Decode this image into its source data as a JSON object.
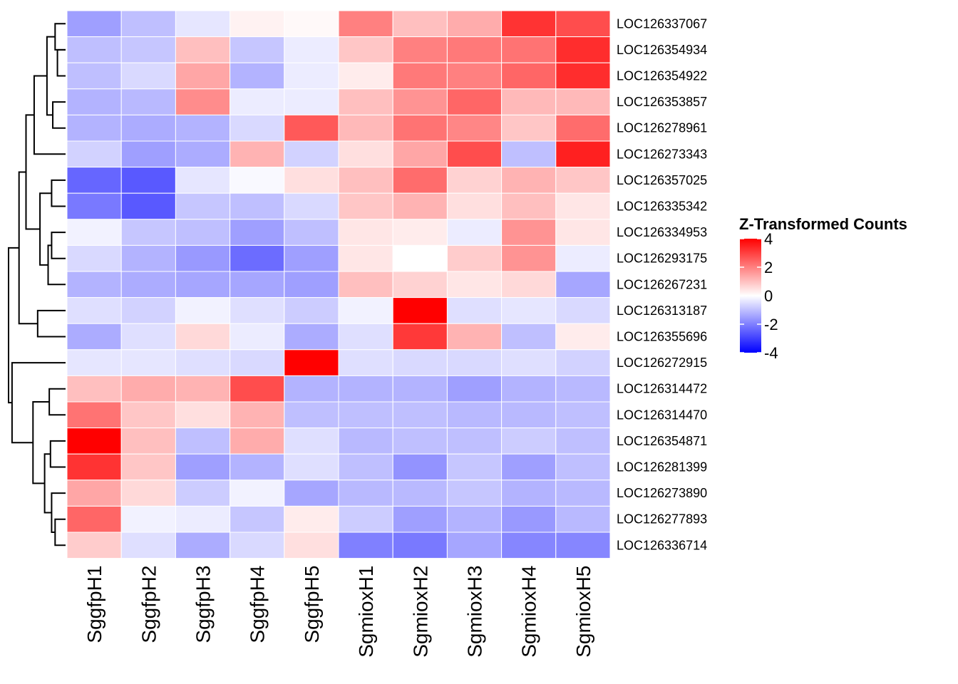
{
  "chart_data": {
    "type": "heatmap",
    "title": "",
    "xlabel": "",
    "ylabel": "",
    "legend": {
      "title": "Z-Transformed Counts",
      "range": [
        -4,
        4
      ],
      "ticks": [
        4,
        2,
        0,
        -2,
        -4
      ],
      "tick_labels": [
        "4",
        "2",
        "0",
        "-2",
        "-4"
      ],
      "placement": "right"
    },
    "colors": {
      "low": "#0000ff",
      "mid": "#ffffff",
      "high": "#ff0000",
      "grid": "#ffffff"
    },
    "columns": [
      "SggfpH1",
      "SggfpH2",
      "SggfpH3",
      "SggfpH4",
      "SggfpH5",
      "SgmioxH1",
      "SgmioxH2",
      "SgmioxH3",
      "SgmioxH4",
      "SgmioxH5"
    ],
    "rows": [
      "LOC126337067",
      "LOC126354934",
      "LOC126354922",
      "LOC126353857",
      "LOC126278961",
      "LOC126273343",
      "LOC126357025",
      "LOC126335342",
      "LOC126334953",
      "LOC126293175",
      "LOC126267231",
      "LOC126313187",
      "LOC126355696",
      "LOC126272915",
      "LOC126314472",
      "LOC126314470",
      "LOC126354871",
      "LOC126281399",
      "LOC126273890",
      "LOC126277893",
      "LOC126336714"
    ],
    "values": [
      [
        -1.5,
        -1.0,
        -0.4,
        0.2,
        0.1,
        2.0,
        1.0,
        1.3,
        3.2,
        2.8
      ],
      [
        -1.0,
        -0.9,
        1.0,
        -0.9,
        -0.3,
        0.9,
        2.0,
        2.1,
        2.2,
        3.3
      ],
      [
        -1.0,
        -0.6,
        1.4,
        -1.2,
        -0.3,
        0.3,
        2.1,
        2.0,
        2.4,
        3.3
      ],
      [
        -1.2,
        -1.1,
        1.8,
        -0.3,
        -0.3,
        1.0,
        1.7,
        2.4,
        1.1,
        1.1
      ],
      [
        -1.2,
        -1.3,
        -1.2,
        -0.6,
        2.6,
        1.1,
        2.2,
        1.9,
        0.9,
        2.3
      ],
      [
        -0.7,
        -1.5,
        -1.3,
        1.2,
        -0.7,
        0.5,
        1.4,
        2.8,
        -1.0,
        3.5
      ],
      [
        -2.4,
        -2.6,
        -0.4,
        -0.1,
        0.5,
        1.0,
        2.3,
        0.7,
        1.2,
        0.9
      ],
      [
        -2.1,
        -2.6,
        -0.9,
        -1.0,
        -0.6,
        0.9,
        1.2,
        0.5,
        1.0,
        0.4
      ],
      [
        -0.2,
        -0.9,
        -1.0,
        -1.5,
        -1.0,
        0.4,
        0.3,
        -0.3,
        1.7,
        0.4
      ],
      [
        -0.6,
        -1.2,
        -1.6,
        -2.3,
        -1.5,
        0.4,
        0.0,
        0.8,
        1.7,
        -0.3
      ],
      [
        -1.2,
        -1.3,
        -1.4,
        -1.4,
        -1.5,
        1.0,
        0.7,
        0.4,
        0.6,
        -1.4
      ],
      [
        -0.5,
        -0.7,
        -0.2,
        -0.5,
        -0.8,
        -0.2,
        4.0,
        -0.5,
        -0.4,
        -0.6
      ],
      [
        -1.3,
        -0.5,
        0.6,
        -0.3,
        -1.3,
        -0.5,
        3.1,
        1.2,
        -1.0,
        0.3
      ],
      [
        -0.4,
        -0.4,
        -0.5,
        -0.6,
        4.0,
        -0.5,
        -0.6,
        -0.6,
        -0.5,
        -0.7
      ],
      [
        1.0,
        1.3,
        1.2,
        2.8,
        -1.2,
        -1.2,
        -1.2,
        -1.5,
        -1.2,
        -1.1
      ],
      [
        2.2,
        0.9,
        0.5,
        1.2,
        -1.0,
        -1.0,
        -1.0,
        -1.1,
        -1.1,
        -1.0
      ],
      [
        4.0,
        1.0,
        -1.0,
        1.3,
        -0.5,
        -1.1,
        -1.0,
        -1.0,
        -0.8,
        -1.0
      ],
      [
        3.2,
        0.9,
        -1.5,
        -1.2,
        -0.5,
        -1.0,
        -1.7,
        -0.9,
        -1.5,
        -1.0
      ],
      [
        1.4,
        0.6,
        -0.8,
        -0.2,
        -1.4,
        -1.1,
        -1.1,
        -0.9,
        -1.2,
        -1.1
      ],
      [
        2.4,
        -0.2,
        -0.3,
        -0.9,
        0.3,
        -0.8,
        -1.5,
        -1.2,
        -1.6,
        -1.1
      ],
      [
        0.8,
        -0.5,
        -1.3,
        -0.6,
        0.5,
        -2.0,
        -2.1,
        -1.4,
        -1.9,
        -1.9
      ]
    ],
    "row_dendrogram": [
      {
        "left": 0,
        "right": 1,
        "height": 0.9
      },
      {
        "left": 1,
        "right": 2,
        "height": 0.7
      },
      {
        "left": 3,
        "right": 4,
        "height": 1.1
      },
      {
        "left": 0,
        "right": 3,
        "height": 1.6
      },
      {
        "left": 0,
        "right": 5,
        "height": 2.7
      },
      {
        "left": 6,
        "right": 7,
        "height": 1.2
      },
      {
        "left": 8,
        "right": 9,
        "height": 1.2
      },
      {
        "left": 8,
        "right": 10,
        "height": 1.5
      },
      {
        "left": 6,
        "right": 8,
        "height": 2.2
      },
      {
        "left": 0,
        "right": 6,
        "height": 3.4
      },
      {
        "left": 11,
        "right": 12,
        "height": 2.4
      },
      {
        "left": 0,
        "right": 11,
        "height": 4.0
      },
      {
        "left": 14,
        "right": 15,
        "height": 1.4
      },
      {
        "left": 16,
        "right": 17,
        "height": 1.3
      },
      {
        "left": 19,
        "right": 20,
        "height": 0.9
      },
      {
        "left": 18,
        "right": 19,
        "height": 1.2
      },
      {
        "left": 16,
        "right": 18,
        "height": 1.8
      },
      {
        "left": 14,
        "right": 16,
        "height": 2.8
      },
      {
        "left": 13,
        "right": 14,
        "height": 4.6
      },
      {
        "left": 0,
        "right": 13,
        "height": 4.9
      }
    ]
  }
}
